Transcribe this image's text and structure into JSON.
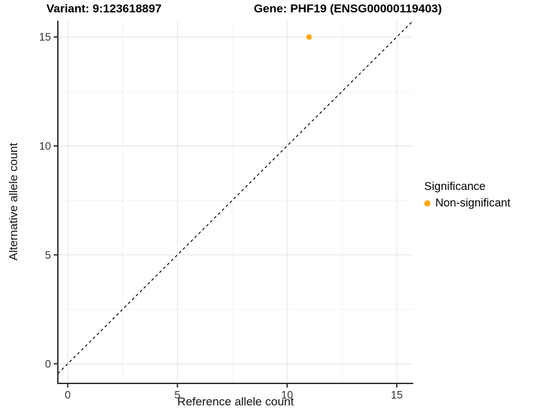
{
  "chart_data": {
    "type": "scatter",
    "title_variant": "Variant: 9:123618897",
    "title_gene": "Gene: PHF19 (ENSG00000119403)",
    "xlabel": "Reference allele count",
    "ylabel": "Alternative allele count",
    "xlim": [
      -0.45,
      15.75
    ],
    "ylim": [
      -0.9,
      15.75
    ],
    "x_ticks": [
      0,
      5,
      10,
      15
    ],
    "y_ticks": [
      0,
      5,
      10,
      15
    ],
    "x_minor_ticks": [
      2.5,
      7.5,
      12.5
    ],
    "y_minor_ticks": [
      2.5,
      7.5,
      12.5
    ],
    "grid": true,
    "major_grid_color": "#e8e8e8",
    "minor_grid_color": "#f3f3f3",
    "axis_line_color": "#333333",
    "reference_line": {
      "type": "identity",
      "style": "dashed",
      "color": "#000000"
    },
    "series": [
      {
        "name": "Non-significant",
        "color": "#FFA500",
        "points": [
          {
            "x": 11,
            "y": 15
          }
        ]
      }
    ],
    "legend": {
      "title": "Significance",
      "position": "right",
      "items": [
        {
          "label": "Non-significant",
          "color": "#FFA500"
        }
      ]
    }
  }
}
